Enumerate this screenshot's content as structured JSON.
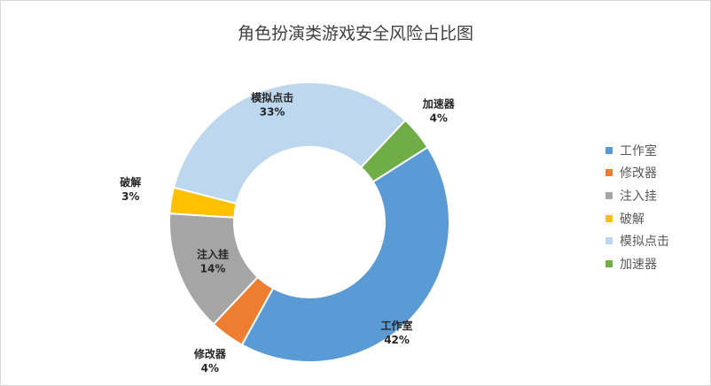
{
  "chart_data": {
    "type": "pie",
    "variant": "doughnut",
    "title": "角色扮演类游戏安全风险占比图",
    "categories": [
      "工作室",
      "修改器",
      "注入挂",
      "破解",
      "模拟点击",
      "加速器"
    ],
    "values": [
      42,
      4,
      14,
      3,
      33,
      4
    ],
    "labels": [
      "42%",
      "4%",
      "14%",
      "3%",
      "33%",
      "4%"
    ],
    "colors": [
      "#5b9bd5",
      "#ed7d31",
      "#a5a5a5",
      "#ffc000",
      "#bdd7ee",
      "#70ad47"
    ],
    "legend_position": "right"
  }
}
